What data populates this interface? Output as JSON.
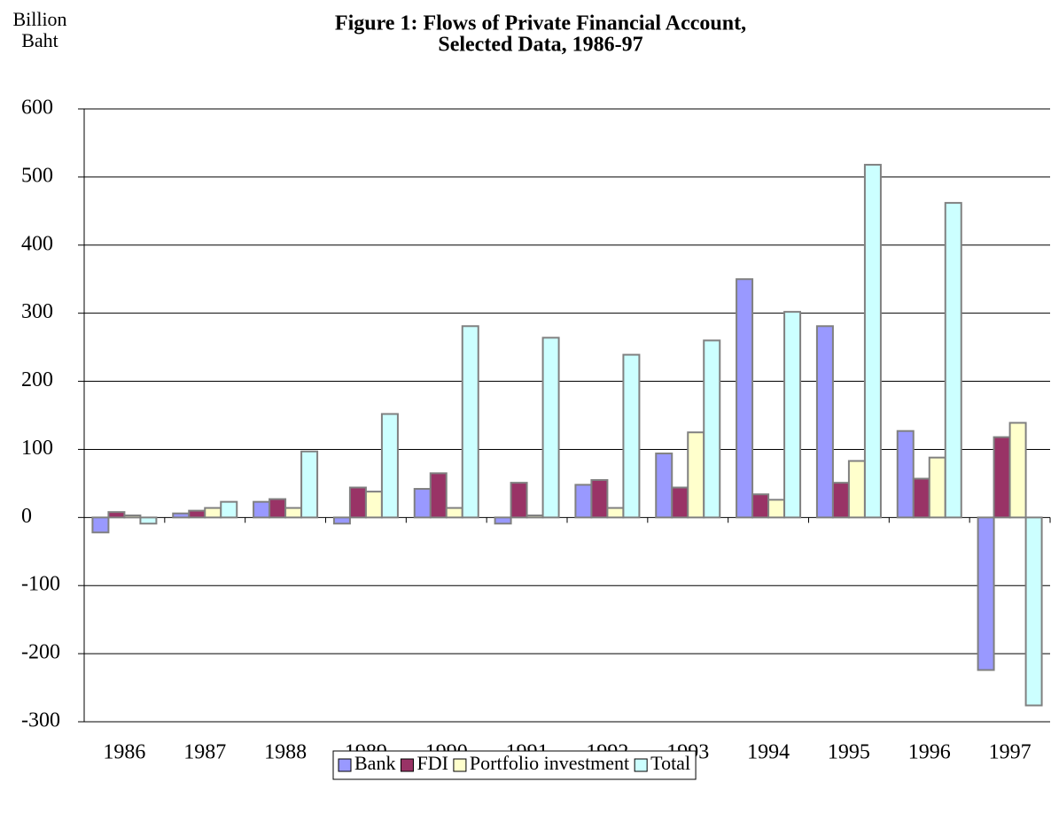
{
  "chart_data": {
    "type": "bar",
    "title": [
      "Figure 1: Flows of Private Financial Account,",
      "Selected Data, 1986-97"
    ],
    "ylabel": [
      "Billion",
      "Baht"
    ],
    "categories": [
      "1986",
      "1987",
      "1988",
      "1989",
      "1990",
      "1991",
      "1992",
      "1993",
      "1994",
      "1995",
      "1996",
      "1997"
    ],
    "series": [
      {
        "name": "Bank",
        "color": "#9999ff",
        "values": [
          -22,
          6,
          23,
          -9,
          42,
          -9,
          48,
          94,
          350,
          281,
          127,
          -224
        ]
      },
      {
        "name": "FDI",
        "color": "#993366",
        "values": [
          8,
          10,
          27,
          44,
          65,
          51,
          55,
          44,
          34,
          51,
          57,
          118
        ]
      },
      {
        "name": "Portfolio investment",
        "color": "#ffffcc",
        "values": [
          3,
          14,
          14,
          38,
          14,
          3,
          14,
          125,
          26,
          83,
          88,
          139
        ]
      },
      {
        "name": "Total",
        "color": "#ccffff",
        "values": [
          -9,
          23,
          97,
          152,
          281,
          264,
          239,
          260,
          302,
          518,
          462,
          -276
        ]
      }
    ],
    "ylim": [
      -300,
      600
    ],
    "yticks": [
      -300,
      -200,
      -100,
      0,
      100,
      200,
      300,
      400,
      500,
      600
    ],
    "grid": true
  }
}
